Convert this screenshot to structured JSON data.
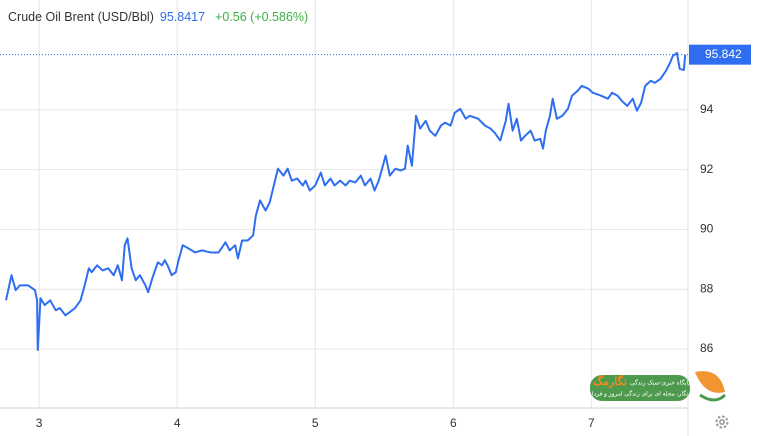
{
  "chart_data": {
    "type": "line",
    "title": "Crude Oil Brent (USD/Bbl)",
    "price": "95.8417",
    "change": "+0.56 (+0.586%)",
    "last_price": 95.842,
    "watermark": {
      "name": "نگارمگ",
      "tagline": "پایگاه خبری-سبک زندگی",
      "subtitle": "نگار، مجله ای برای زندگی امروز و فردا"
    },
    "xlim": [
      2.76,
      7.7
    ],
    "xticks": [
      3,
      4,
      5,
      6,
      7
    ],
    "ylim": [
      84.03,
      97.67
    ],
    "yticks": [
      86,
      88,
      90,
      92,
      94
    ],
    "grid": true,
    "series": [
      {
        "name": "Crude Oil Brent",
        "color": "#2f6ef0",
        "x": [
          2.76,
          2.8,
          2.83,
          2.86,
          2.92,
          2.97,
          2.985,
          2.99,
          3.01,
          3.04,
          3.08,
          3.12,
          3.15,
          3.19,
          3.22,
          3.26,
          3.3,
          3.33,
          3.36,
          3.38,
          3.42,
          3.46,
          3.5,
          3.54,
          3.57,
          3.6,
          3.62,
          3.64,
          3.67,
          3.7,
          3.73,
          3.77,
          3.79,
          3.82,
          3.86,
          3.89,
          3.91,
          3.93,
          3.96,
          3.99,
          4.01,
          4.04,
          4.08,
          4.13,
          4.18,
          4.24,
          4.3,
          4.35,
          4.38,
          4.42,
          4.44,
          4.47,
          4.51,
          4.55,
          4.57,
          4.6,
          4.64,
          4.67,
          4.7,
          4.73,
          4.77,
          4.8,
          4.83,
          4.87,
          4.91,
          4.93,
          4.96,
          5.0,
          5.04,
          5.07,
          5.11,
          5.14,
          5.18,
          5.22,
          5.25,
          5.29,
          5.33,
          5.36,
          5.4,
          5.43,
          5.46,
          5.49,
          5.51,
          5.54,
          5.58,
          5.62,
          5.65,
          5.67,
          5.7,
          5.73,
          5.76,
          5.8,
          5.83,
          5.87,
          5.91,
          5.94,
          5.98,
          6.01,
          6.05,
          6.09,
          6.12,
          6.18,
          6.23,
          6.27,
          6.3,
          6.34,
          6.38,
          6.4,
          6.43,
          6.46,
          6.49,
          6.52,
          6.56,
          6.59,
          6.63,
          6.65,
          6.67,
          6.7,
          6.72,
          6.75,
          6.79,
          6.83,
          6.86,
          6.9,
          6.93,
          6.98,
          7.01,
          7.07,
          7.12,
          7.15,
          7.19,
          7.22,
          7.26,
          7.3,
          7.33,
          7.36,
          7.39,
          7.43,
          7.46,
          7.5,
          7.54,
          7.57,
          7.59,
          7.62,
          7.64,
          7.67,
          7.68
        ],
        "values": [
          87.63,
          88.47,
          87.97,
          88.13,
          88.13,
          87.97,
          87.63,
          85.97,
          87.7,
          87.47,
          87.63,
          87.3,
          87.37,
          87.13,
          87.23,
          87.37,
          87.63,
          88.13,
          88.7,
          88.57,
          88.8,
          88.63,
          88.7,
          88.47,
          88.8,
          88.3,
          89.47,
          89.7,
          88.7,
          88.3,
          88.47,
          88.13,
          87.9,
          88.37,
          88.9,
          88.8,
          88.97,
          88.8,
          88.47,
          88.57,
          88.97,
          89.47,
          89.37,
          89.23,
          89.3,
          89.23,
          89.23,
          89.57,
          89.3,
          89.47,
          89.03,
          89.63,
          89.63,
          89.8,
          90.47,
          90.97,
          90.63,
          90.9,
          91.47,
          92.03,
          91.8,
          92.03,
          91.63,
          91.7,
          91.47,
          91.63,
          91.3,
          91.47,
          91.9,
          91.47,
          91.7,
          91.47,
          91.63,
          91.47,
          91.63,
          91.57,
          91.8,
          91.47,
          91.7,
          91.3,
          91.63,
          92.13,
          92.47,
          91.8,
          92.03,
          91.97,
          92.03,
          92.8,
          92.13,
          93.8,
          93.37,
          93.63,
          93.3,
          93.13,
          93.47,
          93.57,
          93.47,
          93.9,
          94.03,
          93.7,
          93.8,
          93.7,
          93.47,
          93.37,
          93.23,
          92.97,
          93.63,
          94.2,
          93.3,
          93.7,
          92.97,
          93.13,
          93.3,
          92.97,
          93.03,
          92.7,
          93.3,
          93.8,
          94.37,
          93.7,
          93.8,
          94.03,
          94.47,
          94.63,
          94.8,
          94.7,
          94.57,
          94.47,
          94.37,
          94.57,
          94.47,
          94.3,
          94.13,
          94.37,
          93.97,
          94.23,
          94.8,
          94.97,
          94.9,
          95.03,
          95.3,
          95.57,
          95.8,
          95.9,
          95.37,
          95.33,
          95.84
        ]
      }
    ]
  }
}
